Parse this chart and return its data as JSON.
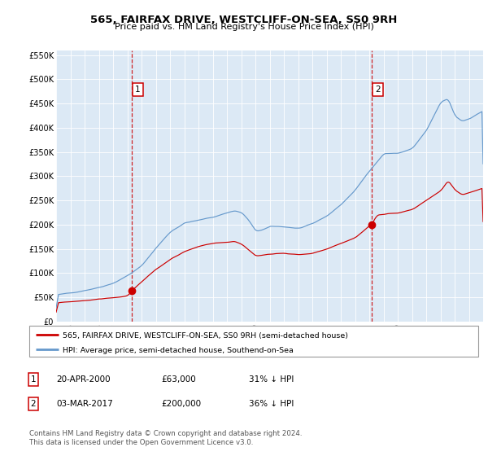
{
  "title": "565, FAIRFAX DRIVE, WESTCLIFF-ON-SEA, SS0 9RH",
  "subtitle": "Price paid vs. HM Land Registry's House Price Index (HPI)",
  "ylim": [
    0,
    560000
  ],
  "yticks": [
    0,
    50000,
    100000,
    150000,
    200000,
    250000,
    300000,
    350000,
    400000,
    450000,
    500000,
    550000
  ],
  "ytick_labels": [
    "£0",
    "£50K",
    "£100K",
    "£150K",
    "£200K",
    "£250K",
    "£300K",
    "£350K",
    "£400K",
    "£450K",
    "£500K",
    "£550K"
  ],
  "x_start_year": 1995,
  "x_end_year": 2024,
  "background_color": "#dce9f5",
  "red_line_color": "#cc0000",
  "blue_line_color": "#6699cc",
  "marker_color": "#cc0000",
  "vline_color": "#cc0000",
  "sale1_year": 2000.3,
  "sale1_price": 63000,
  "sale2_year": 2017.17,
  "sale2_price": 200000,
  "sale1_date": "20-APR-2000",
  "sale1_price_str": "£63,000",
  "sale1_hpi_diff": "31% ↓ HPI",
  "sale2_date": "03-MAR-2017",
  "sale2_price_str": "£200,000",
  "sale2_hpi_diff": "36% ↓ HPI",
  "legend_label_red": "565, FAIRFAX DRIVE, WESTCLIFF-ON-SEA, SS0 9RH (semi-detached house)",
  "legend_label_blue": "HPI: Average price, semi-detached house, Southend-on-Sea",
  "footer": "Contains HM Land Registry data © Crown copyright and database right 2024.\nThis data is licensed under the Open Government Licence v3.0."
}
